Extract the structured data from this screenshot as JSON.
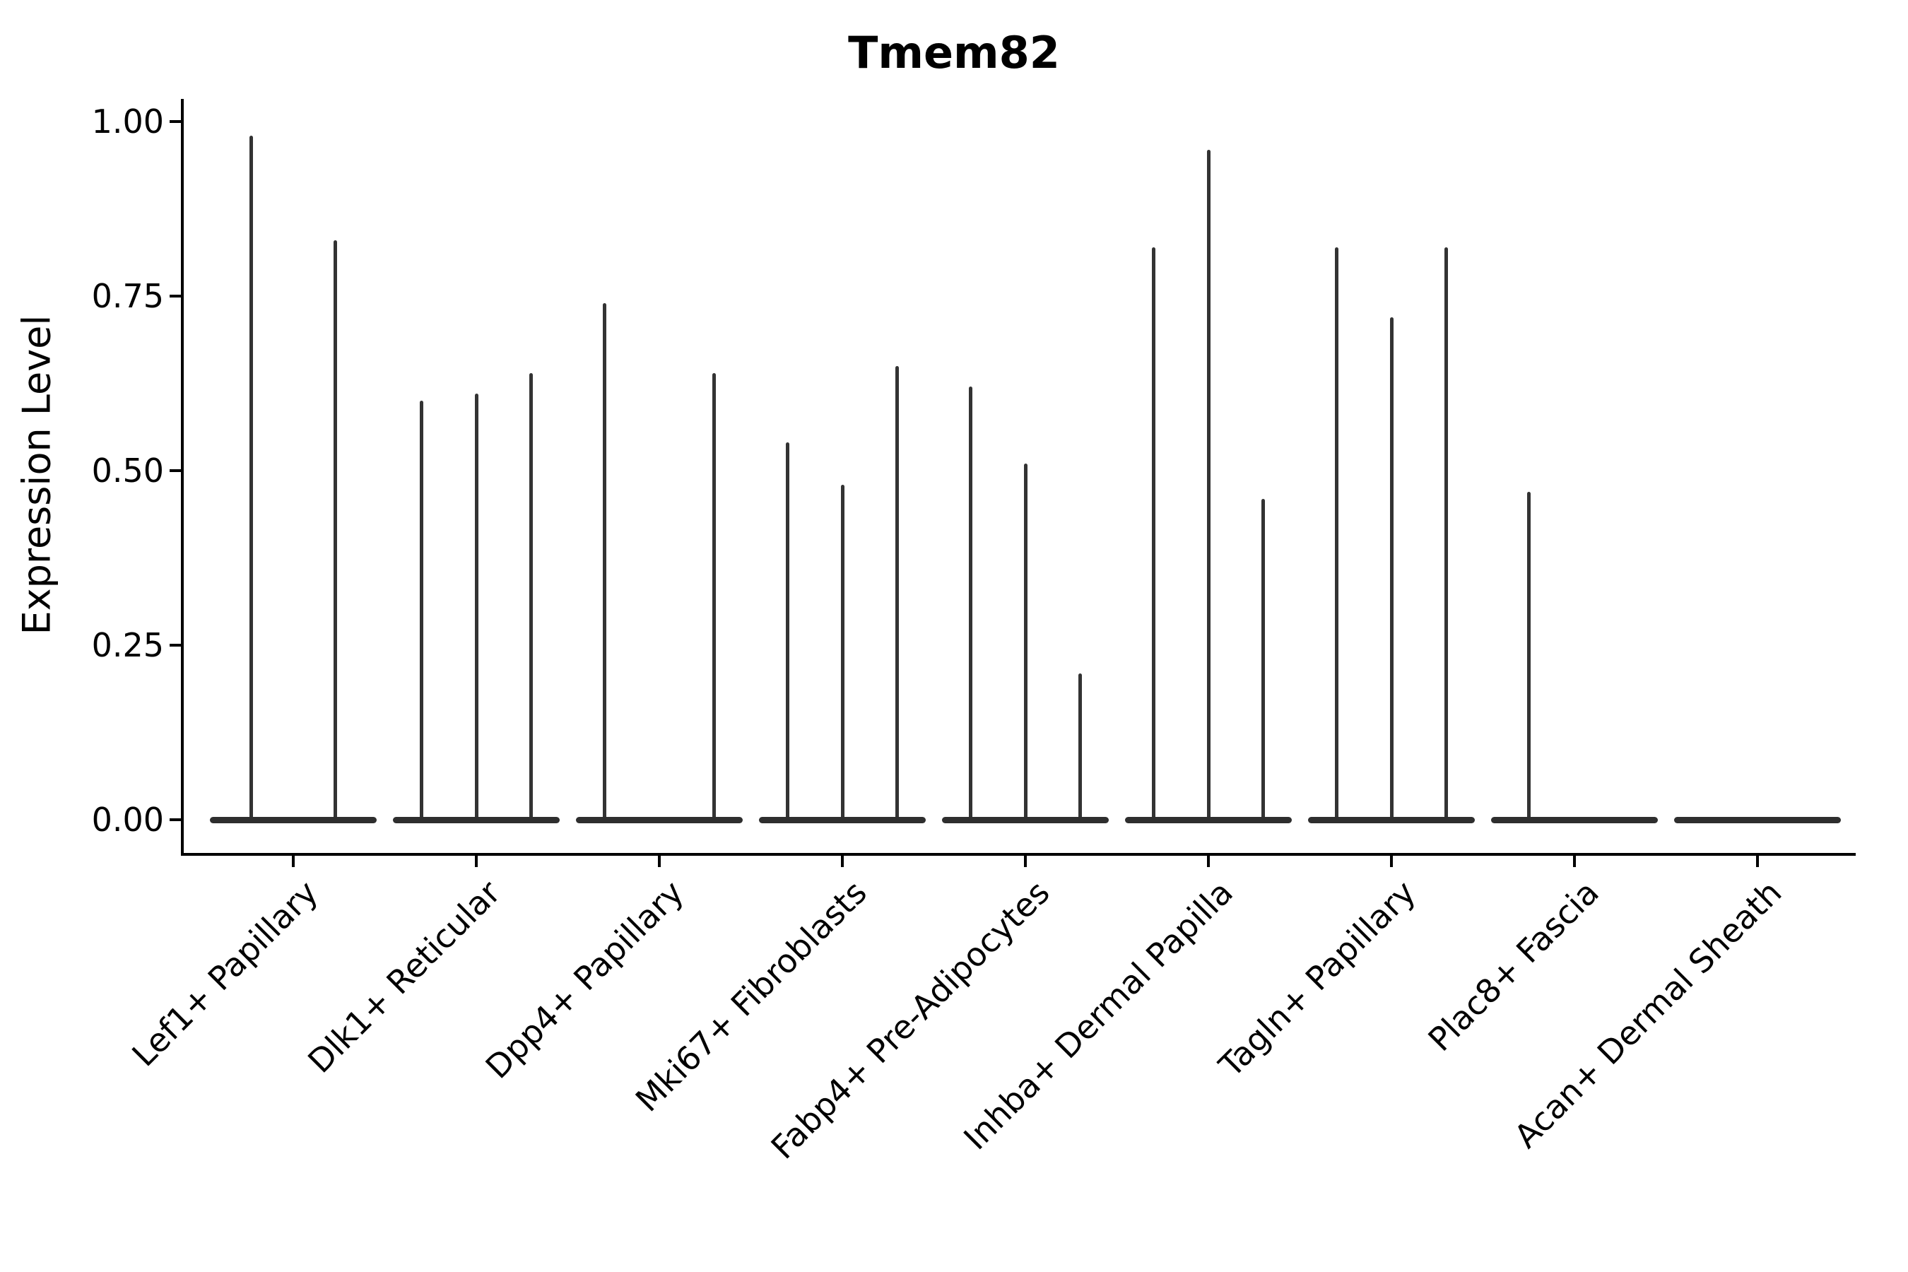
{
  "title": "Tmem82",
  "y_axis": {
    "label": "Expression Level",
    "ticks": [
      {
        "label": "1.00",
        "value": 1.0
      },
      {
        "label": "0.75",
        "value": 0.75
      },
      {
        "label": "0.50",
        "value": 0.5
      },
      {
        "label": "0.25",
        "value": 0.25
      },
      {
        "label": "0.00",
        "value": 0.0
      }
    ]
  },
  "chart_data": {
    "type": "violin",
    "title": "Tmem82",
    "xlabel": "",
    "ylabel": "Expression Level",
    "ylim": [
      0,
      1.03
    ],
    "yticks": [
      0,
      0.25,
      0.5,
      0.75,
      1.0
    ],
    "grid": false,
    "legend": "none",
    "line_color": "#333333",
    "style_note": "Seurat-style violin plot; each cluster shows 1-3 very thin violins: a flat wide body at 0 expression with a narrow spike rising to the max expression value",
    "categories": [
      "Lef1+ Papillary",
      "Dlk1+ Reticular",
      "Dpp4+ Papillary",
      "Mki67+ Fibroblasts",
      "Fabp4+ Pre-Adipocytes",
      "Inhba+ Dermal Papilla",
      "Tagln+ Papillary",
      "Plac8+ Fascia",
      "Acan+ Dermal Sheath"
    ],
    "series": [
      {
        "category": "Lef1+ Papillary",
        "baseline": true,
        "violins": [
          {
            "pos": -0.23,
            "max": 0.98
          },
          {
            "pos": 0.23,
            "max": 0.83
          }
        ]
      },
      {
        "category": "Dlk1+ Reticular",
        "baseline": true,
        "violins": [
          {
            "pos": -0.3,
            "max": 0.6
          },
          {
            "pos": 0.0,
            "max": 0.61
          },
          {
            "pos": 0.3,
            "max": 0.64
          }
        ]
      },
      {
        "category": "Dpp4+ Papillary",
        "baseline": true,
        "violins": [
          {
            "pos": -0.3,
            "max": 0.74
          },
          {
            "pos": 0.3,
            "max": 0.64
          }
        ]
      },
      {
        "category": "Mki67+ Fibroblasts",
        "baseline": true,
        "violins": [
          {
            "pos": -0.3,
            "max": 0.54
          },
          {
            "pos": 0.0,
            "max": 0.48
          },
          {
            "pos": 0.3,
            "max": 0.65
          }
        ]
      },
      {
        "category": "Fabp4+ Pre-Adipocytes",
        "baseline": true,
        "violins": [
          {
            "pos": -0.3,
            "max": 0.62
          },
          {
            "pos": 0.0,
            "max": 0.51
          },
          {
            "pos": 0.3,
            "max": 0.21
          }
        ]
      },
      {
        "category": "Inhba+ Dermal Papilla",
        "baseline": true,
        "violins": [
          {
            "pos": -0.3,
            "max": 0.82
          },
          {
            "pos": 0.0,
            "max": 0.96
          },
          {
            "pos": 0.3,
            "max": 0.46
          }
        ]
      },
      {
        "category": "Tagln+ Papillary",
        "baseline": true,
        "violins": [
          {
            "pos": -0.3,
            "max": 0.82
          },
          {
            "pos": 0.0,
            "max": 0.72
          },
          {
            "pos": 0.3,
            "max": 0.82
          }
        ]
      },
      {
        "category": "Plac8+ Fascia",
        "baseline": true,
        "violins": [
          {
            "pos": -0.25,
            "max": 0.47
          }
        ]
      },
      {
        "category": "Acan+ Dermal Sheath",
        "baseline": true,
        "violins": []
      }
    ]
  }
}
